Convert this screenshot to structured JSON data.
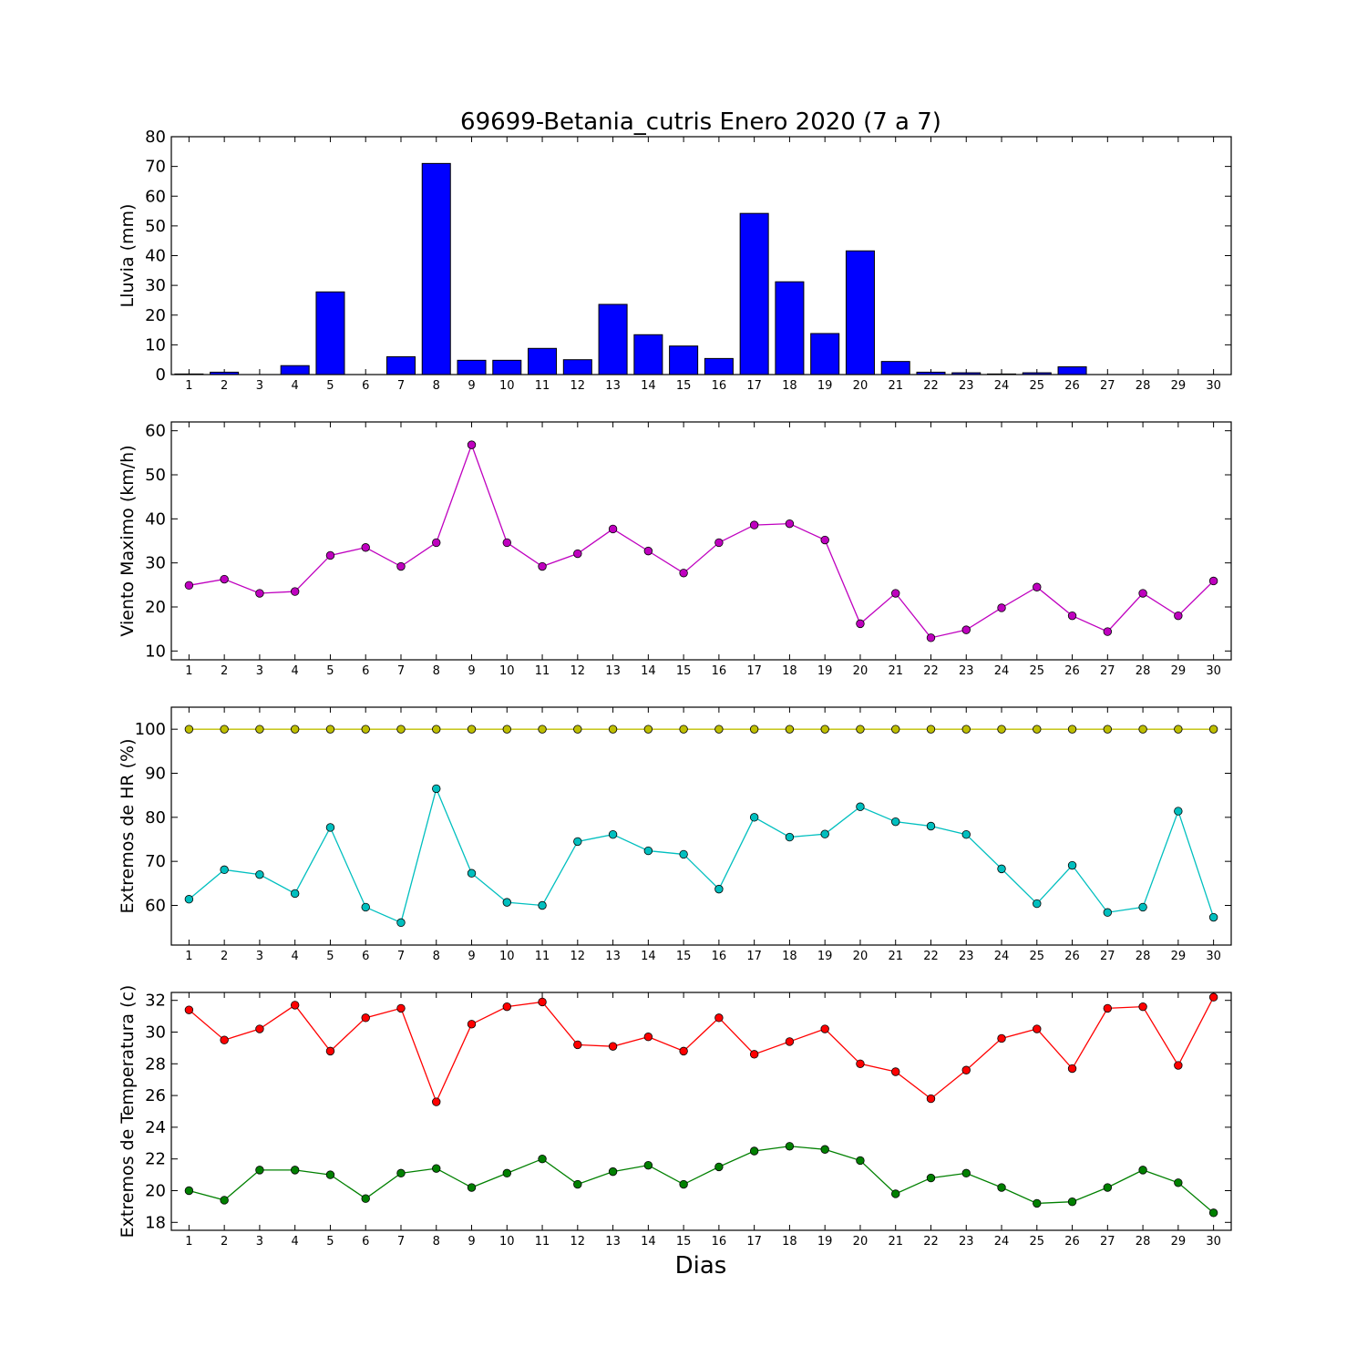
{
  "title": "69699-Betania_cutris Enero 2020  (7 a 7)",
  "xlabel": "Dias",
  "chart_data": [
    {
      "type": "bar",
      "ylabel": "Lluvia (mm)",
      "ylim": [
        0,
        80
      ],
      "yticks": [
        0,
        10,
        20,
        30,
        40,
        50,
        60,
        70,
        80
      ],
      "categories": [
        "1",
        "2",
        "3",
        "4",
        "5",
        "6",
        "7",
        "8",
        "9",
        "10",
        "11",
        "12",
        "13",
        "14",
        "15",
        "16",
        "17",
        "18",
        "19",
        "20",
        "21",
        "22",
        "23",
        "24",
        "25",
        "26",
        "27",
        "28",
        "29",
        "30"
      ],
      "color": "#0000ff",
      "values": [
        0.2,
        0.8,
        0,
        3.0,
        27.8,
        0,
        6.0,
        71.0,
        4.8,
        4.8,
        8.8,
        5.0,
        23.6,
        13.4,
        9.6,
        5.4,
        54.2,
        31.2,
        13.8,
        41.6,
        4.4,
        0.8,
        0.6,
        0.2,
        0.6,
        2.6,
        0,
        0,
        0,
        0
      ]
    },
    {
      "type": "line",
      "ylabel": "Viento Maximo (km/h)",
      "ylim": [
        8,
        62
      ],
      "yticks": [
        10,
        20,
        30,
        40,
        50,
        60
      ],
      "x": [
        1,
        2,
        3,
        4,
        5,
        6,
        7,
        8,
        9,
        10,
        11,
        12,
        13,
        14,
        15,
        16,
        17,
        18,
        19,
        20,
        21,
        22,
        23,
        24,
        25,
        26,
        27,
        28,
        29,
        30
      ],
      "series": [
        {
          "color": "#bf00bf",
          "values": [
            24.9,
            26.3,
            23.1,
            23.5,
            31.7,
            33.5,
            29.2,
            34.6,
            56.8,
            34.6,
            29.2,
            32.1,
            37.7,
            32.7,
            27.7,
            34.6,
            38.6,
            38.9,
            35.2,
            16.2,
            23.1,
            13.0,
            14.8,
            19.8,
            24.5,
            18.0,
            14.4,
            23.1,
            18.0,
            25.9
          ]
        }
      ]
    },
    {
      "type": "line",
      "ylabel": "Extremos de HR (%)",
      "ylim": [
        51,
        105
      ],
      "yticks": [
        60,
        70,
        80,
        90,
        100
      ],
      "x": [
        1,
        2,
        3,
        4,
        5,
        6,
        7,
        8,
        9,
        10,
        11,
        12,
        13,
        14,
        15,
        16,
        17,
        18,
        19,
        20,
        21,
        22,
        23,
        24,
        25,
        26,
        27,
        28,
        29,
        30
      ],
      "series": [
        {
          "color": "#bfbf00",
          "values": [
            100,
            100,
            100,
            100,
            100,
            100,
            100,
            100,
            100,
            100,
            100,
            100,
            100,
            100,
            100,
            100,
            100,
            100,
            100,
            100,
            100,
            100,
            100,
            100,
            100,
            100,
            100,
            100,
            100,
            100
          ]
        },
        {
          "color": "#00bfbf",
          "values": [
            61.4,
            68.1,
            67.0,
            62.7,
            77.7,
            59.6,
            56.1,
            86.5,
            67.3,
            60.7,
            60.0,
            74.5,
            76.1,
            72.4,
            71.6,
            63.7,
            80.0,
            75.5,
            76.2,
            82.4,
            79.0,
            78.0,
            76.1,
            68.3,
            60.4,
            69.1,
            58.4,
            59.6,
            81.4,
            57.3
          ]
        }
      ]
    },
    {
      "type": "line",
      "ylabel": "Extremos de Temperatura (c)",
      "ylim": [
        17.5,
        32.5
      ],
      "yticks": [
        18,
        20,
        22,
        24,
        26,
        28,
        30,
        32
      ],
      "x": [
        1,
        2,
        3,
        4,
        5,
        6,
        7,
        8,
        9,
        10,
        11,
        12,
        13,
        14,
        15,
        16,
        17,
        18,
        19,
        20,
        21,
        22,
        23,
        24,
        25,
        26,
        27,
        28,
        29,
        30
      ],
      "series": [
        {
          "color": "#ff0000",
          "values": [
            31.4,
            29.5,
            30.2,
            31.7,
            28.8,
            30.9,
            31.5,
            25.6,
            30.5,
            31.6,
            31.9,
            29.2,
            29.1,
            29.7,
            28.8,
            30.9,
            28.6,
            29.4,
            30.2,
            28.0,
            27.5,
            25.8,
            27.6,
            29.6,
            30.2,
            27.7,
            31.5,
            31.6,
            27.9,
            32.2
          ]
        },
        {
          "color": "#008000",
          "values": [
            20.0,
            19.4,
            21.3,
            21.3,
            21.0,
            19.5,
            21.1,
            21.4,
            20.2,
            21.1,
            22.0,
            20.4,
            21.2,
            21.6,
            20.4,
            21.5,
            22.5,
            22.8,
            22.6,
            21.9,
            19.8,
            20.8,
            21.1,
            20.2,
            19.2,
            19.3,
            20.2,
            21.3,
            20.5,
            18.6
          ]
        }
      ]
    }
  ]
}
